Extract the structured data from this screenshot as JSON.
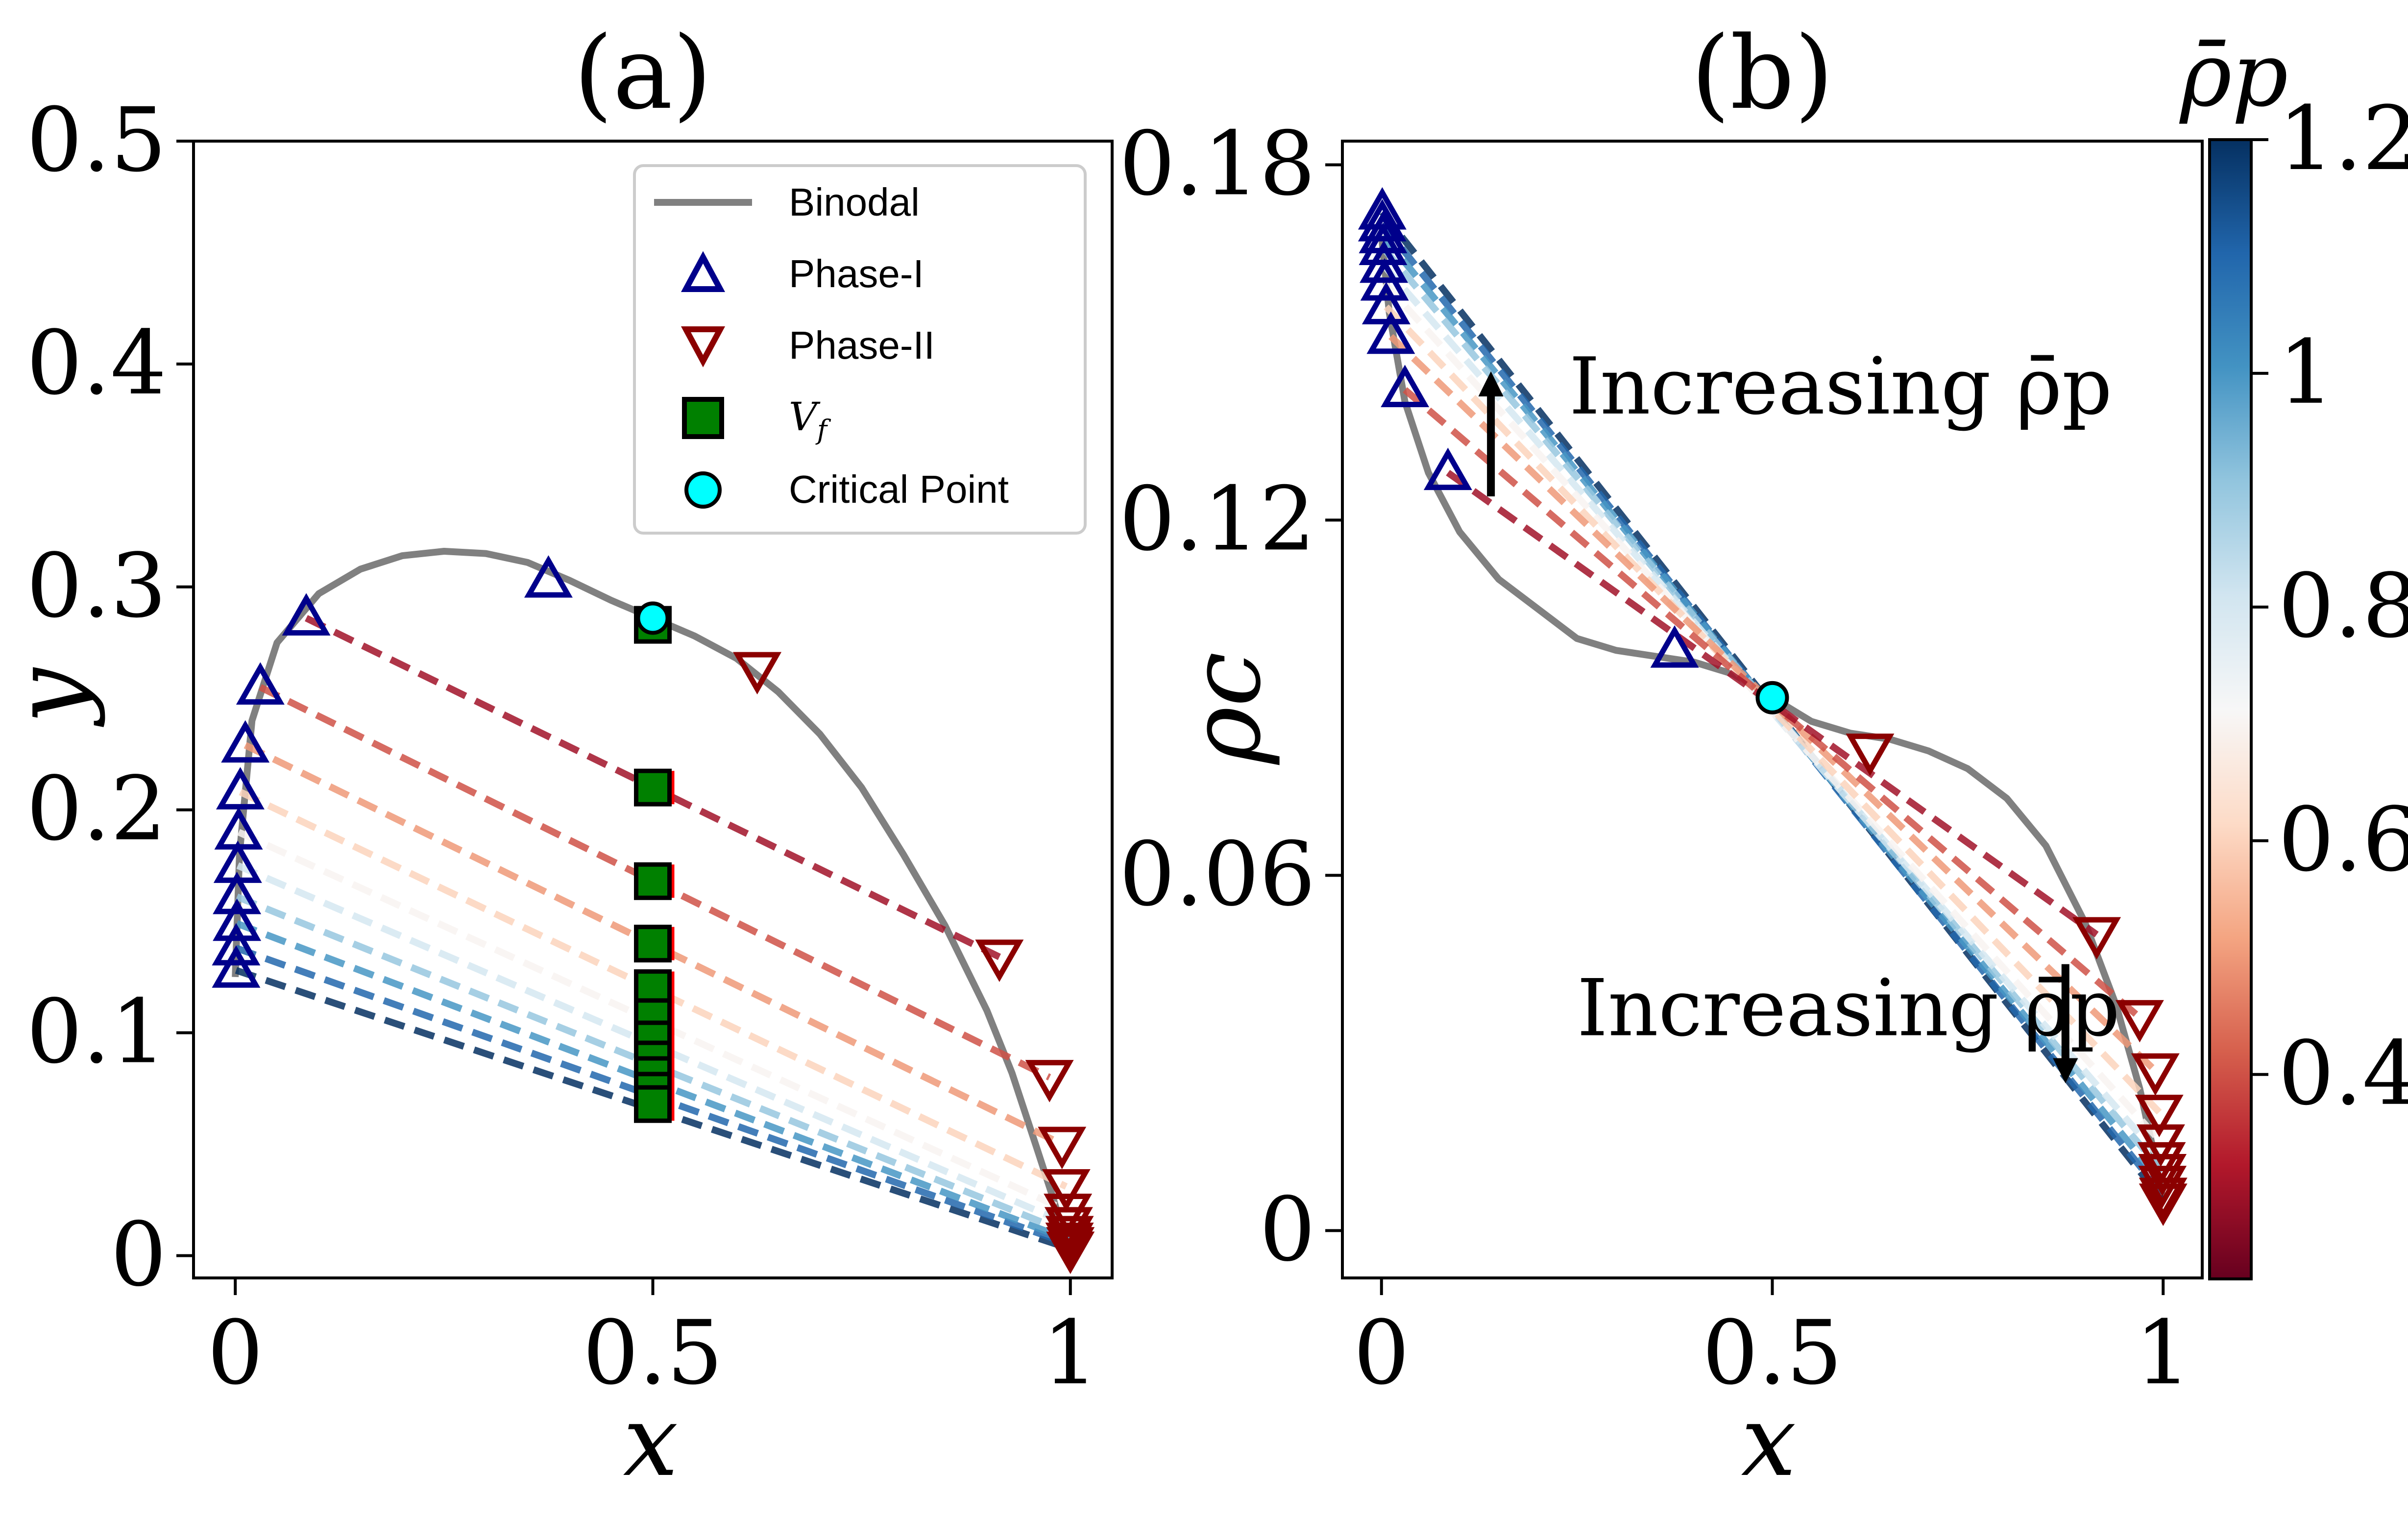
{
  "colors": {
    "binodal": "#808080",
    "phase1": "#00008b",
    "phase2": "#8b0000",
    "vf_fill": "#008000",
    "critical_fill": "#00ffff",
    "arrow": "#000000",
    "colormap": "RdBu",
    "colormap_stops": [
      "#67001f",
      "#b2182b",
      "#d6604d",
      "#f4a582",
      "#fddbc7",
      "#f7f7f7",
      "#d1e5f0",
      "#92c5de",
      "#4393c3",
      "#2166ac",
      "#053061"
    ]
  },
  "chart_data": [
    {
      "type": "line",
      "panel": "(a)",
      "xlabel": "x",
      "ylabel": "y",
      "xlim": [
        -0.05,
        1.05
      ],
      "ylim": [
        -0.01,
        0.5
      ],
      "xticks": [
        0,
        0.5,
        1
      ],
      "xtick_labels": [
        "0",
        "0.5",
        "1"
      ],
      "yticks": [
        0,
        0.1,
        0.2,
        0.3,
        0.4,
        0.5
      ],
      "ytick_labels": [
        "0",
        "0.1",
        "0.2",
        "0.3",
        "0.4",
        "0.5"
      ],
      "legend": {
        "placement": "top-right",
        "entries": [
          "Binodal",
          "Phase-I",
          "Phase-II",
          "V",
          "Critical Point"
        ],
        "vf_subscript": "f"
      },
      "binodal": {
        "x": [
          0.0,
          0.005,
          0.02,
          0.05,
          0.1,
          0.15,
          0.2,
          0.25,
          0.3,
          0.35,
          0.4,
          0.45,
          0.5,
          0.55,
          0.6,
          0.65,
          0.7,
          0.75,
          0.8,
          0.85,
          0.9,
          0.93,
          0.96,
          0.98,
          0.99,
          1.0
        ],
        "y": [
          0.125,
          0.18,
          0.24,
          0.275,
          0.297,
          0.308,
          0.314,
          0.316,
          0.315,
          0.311,
          0.303,
          0.294,
          0.286,
          0.278,
          0.268,
          0.253,
          0.234,
          0.21,
          0.18,
          0.148,
          0.11,
          0.082,
          0.048,
          0.025,
          0.012,
          0.0
        ]
      },
      "critical_point": {
        "x": 0.5,
        "y": 0.286
      },
      "tie_lines": [
        {
          "rho_p": 0.3,
          "x1": 0.085,
          "y1": 0.286,
          "x2": 0.915,
          "y2": 0.134,
          "vf_y": 0.21
        },
        {
          "rho_p": 0.4,
          "x1": 0.03,
          "y1": 0.255,
          "x2": 0.975,
          "y2": 0.08,
          "vf_y": 0.168
        },
        {
          "rho_p": 0.5,
          "x1": 0.012,
          "y1": 0.229,
          "x2": 0.99,
          "y2": 0.05,
          "vf_y": 0.14
        },
        {
          "rho_p": 0.6,
          "x1": 0.006,
          "y1": 0.208,
          "x2": 0.995,
          "y2": 0.031,
          "vf_y": 0.12
        },
        {
          "rho_p": 0.7,
          "x1": 0.004,
          "y1": 0.19,
          "x2": 0.997,
          "y2": 0.02,
          "vf_y": 0.107
        },
        {
          "rho_p": 0.8,
          "x1": 0.003,
          "y1": 0.175,
          "x2": 0.998,
          "y2": 0.014,
          "vf_y": 0.097
        },
        {
          "rho_p": 0.9,
          "x1": 0.002,
          "y1": 0.161,
          "x2": 0.999,
          "y2": 0.01,
          "vf_y": 0.088
        },
        {
          "rho_p": 1.0,
          "x1": 0.002,
          "y1": 0.149,
          "x2": 0.999,
          "y2": 0.007,
          "vf_y": 0.081
        },
        {
          "rho_p": 1.1,
          "x1": 0.001,
          "y1": 0.138,
          "x2": 1.0,
          "y2": 0.005,
          "vf_y": 0.074
        },
        {
          "rho_p": 1.2,
          "x1": 0.001,
          "y1": 0.128,
          "x2": 1.0,
          "y2": 0.003,
          "vf_y": 0.068
        }
      ],
      "extra_points": {
        "phase1": [
          {
            "x": 0.375,
            "y": 0.303
          }
        ],
        "phase2": [
          {
            "x": 0.625,
            "y": 0.263
          }
        ],
        "vf": [
          {
            "x": 0.5,
            "y": 0.283
          }
        ]
      }
    },
    {
      "type": "line",
      "panel": "(b)",
      "xlabel": "x",
      "ylabel": "ρc",
      "xlim": [
        -0.05,
        1.05
      ],
      "ylim": [
        -0.008,
        0.184
      ],
      "xticks": [
        0,
        0.5,
        1
      ],
      "xtick_labels": [
        "0",
        "0.5",
        "1"
      ],
      "yticks": [
        0,
        0.06,
        0.12,
        0.18
      ],
      "ytick_labels": [
        "0",
        "0.06",
        "0.12",
        "0.18"
      ],
      "binodal": {
        "x": [
          0.0,
          0.01,
          0.03,
          0.06,
          0.1,
          0.15,
          0.2,
          0.25,
          0.3,
          0.35,
          0.4,
          0.45,
          0.5,
          0.55,
          0.6,
          0.65,
          0.7,
          0.75,
          0.8,
          0.85,
          0.9,
          0.94,
          0.97,
          0.99,
          1.0
        ],
        "y": [
          0.168,
          0.155,
          0.14,
          0.128,
          0.118,
          0.11,
          0.105,
          0.1,
          0.098,
          0.097,
          0.096,
          0.094,
          0.09,
          0.086,
          0.084,
          0.083,
          0.081,
          0.078,
          0.073,
          0.065,
          0.052,
          0.038,
          0.024,
          0.012,
          0.005
        ]
      },
      "critical_point": {
        "x": 0.5,
        "y": 0.09
      },
      "tie_lines": [
        {
          "rho_p": 0.3,
          "x1": 0.085,
          "y1": 0.128,
          "x2": 0.915,
          "y2": 0.05
        },
        {
          "rho_p": 0.4,
          "x1": 0.03,
          "y1": 0.142,
          "x2": 0.97,
          "y2": 0.036
        },
        {
          "rho_p": 0.5,
          "x1": 0.012,
          "y1": 0.151,
          "x2": 0.99,
          "y2": 0.027
        },
        {
          "rho_p": 0.6,
          "x1": 0.006,
          "y1": 0.156,
          "x2": 0.995,
          "y2": 0.02
        },
        {
          "rho_p": 0.7,
          "x1": 0.004,
          "y1": 0.16,
          "x2": 0.997,
          "y2": 0.015
        },
        {
          "rho_p": 0.8,
          "x1": 0.003,
          "y1": 0.163,
          "x2": 0.998,
          "y2": 0.012
        },
        {
          "rho_p": 0.9,
          "x1": 0.002,
          "y1": 0.166,
          "x2": 0.999,
          "y2": 0.01
        },
        {
          "rho_p": 1.0,
          "x1": 0.002,
          "y1": 0.168,
          "x2": 0.999,
          "y2": 0.008
        },
        {
          "rho_p": 1.1,
          "x1": 0.001,
          "y1": 0.17,
          "x2": 1.0,
          "y2": 0.006
        },
        {
          "rho_p": 1.2,
          "x1": 0.001,
          "y1": 0.172,
          "x2": 1.0,
          "y2": 0.005
        }
      ],
      "extra_points": {
        "phase1": [
          {
            "x": 0.375,
            "y": 0.098
          }
        ],
        "phase2": [
          {
            "x": 0.625,
            "y": 0.081
          }
        ]
      },
      "annotations": [
        {
          "text": "Increasing ρ̄p",
          "x": 0.24,
          "y": 0.138,
          "arrow_from": {
            "x": 0.14,
            "y": 0.124
          },
          "arrow_to": {
            "x": 0.14,
            "y": 0.143
          }
        },
        {
          "text": "Increasing ρ̄p",
          "x": 0.25,
          "y": 0.033,
          "arrow_from": {
            "x": 0.875,
            "y": 0.045
          },
          "arrow_to": {
            "x": 0.875,
            "y": 0.027
          }
        }
      ],
      "colorbar": {
        "label": "ρ̄p",
        "range": [
          0.225,
          1.2
        ],
        "ticks": [
          0.4,
          0.6,
          0.8,
          1.0,
          1.2
        ],
        "tick_labels": [
          "0.4",
          "0.6",
          "0.8",
          "1",
          "1.2"
        ]
      }
    }
  ]
}
